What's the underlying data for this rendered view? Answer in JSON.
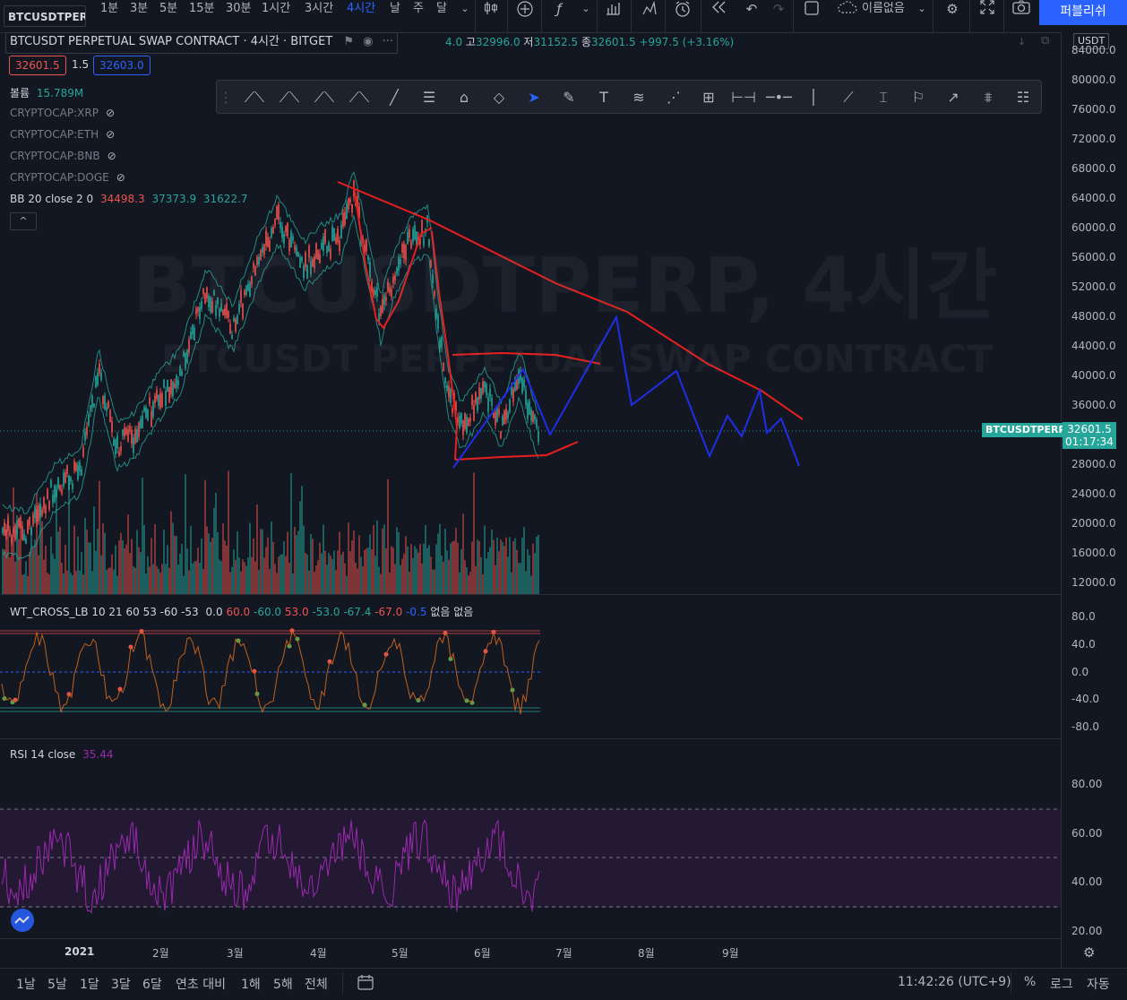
{
  "toolbar": {
    "symbol": "BTCUSDTPERP",
    "timeframes": [
      "1분",
      "3분",
      "5분",
      "15분",
      "30분",
      "1시간",
      "3시간",
      "4시간",
      "날",
      "주",
      "달"
    ],
    "active_timeframe": "4시간",
    "layout_name": "이름없음",
    "publish_label": "퍼블리쉬"
  },
  "legend": {
    "title": "BTCUSDT PERPETUAL SWAP CONTRACT · 4시간 · BITGET",
    "ohlc_open": "4.0",
    "ohlc_high_label": "고",
    "ohlc_high": "32996.0",
    "ohlc_low_label": "저",
    "ohlc_low": "31152.5",
    "ohlc_close_label": "종",
    "ohlc_close": "32601.5",
    "ohlc_change": "+997.5 (+3.16%)",
    "bid": "32601.5",
    "spread": "1.5",
    "ask": "32603.0",
    "volume_label": "볼륨",
    "volume_value": "15.789M",
    "overlays": [
      "CRYPTOCAP:XRP",
      "CRYPTOCAP:ETH",
      "CRYPTOCAP:BNB",
      "CRYPTOCAP:DOGE"
    ],
    "bb_label": "BB 20 close 2 0",
    "bb_basis": "34498.3",
    "bb_upper": "37373.9",
    "bb_lower": "31622.7"
  },
  "watermark": {
    "main": "BTCUSDTPERP, 4시간",
    "sub": "BTCUSDT PERPETUAL SWAP CONTRACT"
  },
  "price_axis": {
    "currency": "USDT",
    "ticks": [
      "84000.0",
      "80000.0",
      "76000.0",
      "72000.0",
      "68000.0",
      "64000.0",
      "60000.0",
      "56000.0",
      "52000.0",
      "48000.0",
      "44000.0",
      "40000.0",
      "36000.0",
      "32000.0",
      "28000.0",
      "24000.0",
      "20000.0",
      "16000.0",
      "12000.0"
    ],
    "symbol_tag": "BTCUSDTPERP",
    "last_price": "32601.5",
    "countdown": "01:17:34"
  },
  "wt_cross": {
    "label": "WT_CROSS_LB 10 21 60 53 -60 -53",
    "values": [
      "0.0",
      "60.0",
      "-60.0",
      "53.0",
      "-53.0",
      "-67.4",
      "-67.0",
      "-0.5",
      "없음",
      "없음"
    ],
    "ticks": [
      "80.0",
      "40.0",
      "0.0",
      "-40.0",
      "-80.0"
    ]
  },
  "rsi": {
    "label": "RSI 14 close",
    "value": "35.44",
    "ticks": [
      "80.00",
      "60.00",
      "40.00",
      "20.00"
    ]
  },
  "time_axis": [
    "2021",
    "2월",
    "3월",
    "4월",
    "5월",
    "6월",
    "7월",
    "8월",
    "9월"
  ],
  "bottom_bar": {
    "ranges": [
      "1날",
      "5날",
      "1달",
      "3달",
      "6달",
      "연초 대비",
      "1해",
      "5해",
      "전체"
    ],
    "clock": "11:42:26 (UTC+9)",
    "percent": "%",
    "log": "로그",
    "auto": "자동"
  },
  "colors": {
    "up": "#26a69a",
    "down": "#ef5350",
    "accent": "#2962ff",
    "bg": "#131722",
    "rsi": "#9c27b0"
  }
}
